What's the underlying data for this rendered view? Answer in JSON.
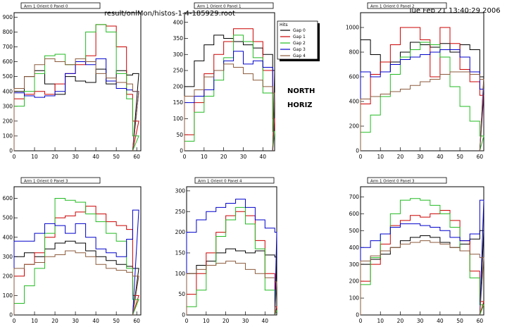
{
  "header": {
    "filename": "result/onlMon/histos-1-4-185929.root",
    "datetime": "Tue Feb 21 13:40:29 2006"
  },
  "legend": {
    "title": "Hits",
    "entries": [
      "Gap 0",
      "Gap 1",
      "Gap 2",
      "Gap 3",
      "Gap 4"
    ]
  },
  "annotations": [
    "NORTH",
    "HORIZ"
  ],
  "colors": {
    "Gap 0": "#000000",
    "Gap 1": "#cc0000",
    "Gap 2": "#22bb22",
    "Gap 3": "#0000cc",
    "Gap 4": "#8b5a3c"
  },
  "chart_data": [
    {
      "type": "line",
      "title": "Arm 1 Orient 0 Panel 0",
      "x_ticks": [
        0,
        10,
        20,
        30,
        40,
        50,
        60
      ],
      "y_ticks": [
        0,
        100,
        200,
        300,
        400,
        500,
        600,
        700,
        800,
        900
      ],
      "xlim": [
        0,
        62
      ],
      "ylim": [
        0,
        930
      ],
      "series": [
        {
          "name": "Gap 0",
          "x": [
            0,
            5,
            10,
            15,
            20,
            25,
            30,
            35,
            40,
            45,
            50,
            55,
            58
          ],
          "y": [
            400,
            500,
            540,
            450,
            380,
            500,
            470,
            460,
            550,
            450,
            540,
            510,
            520
          ]
        },
        {
          "name": "Gap 1",
          "x": [
            0,
            5,
            10,
            15,
            20,
            25,
            30,
            35,
            40,
            45,
            50,
            55,
            58
          ],
          "y": [
            350,
            380,
            400,
            380,
            450,
            520,
            580,
            640,
            850,
            840,
            700,
            380,
            200
          ]
        },
        {
          "name": "Gap 2",
          "x": [
            0,
            5,
            10,
            15,
            20,
            25,
            30,
            35,
            40,
            45,
            50,
            55,
            58
          ],
          "y": [
            300,
            400,
            520,
            640,
            650,
            580,
            600,
            800,
            850,
            800,
            520,
            350,
            100
          ]
        },
        {
          "name": "Gap 3",
          "x": [
            0,
            5,
            10,
            15,
            20,
            25,
            30,
            35,
            40,
            45,
            50,
            55,
            58
          ],
          "y": [
            390,
            370,
            360,
            370,
            400,
            520,
            600,
            580,
            620,
            470,
            420,
            410,
            400
          ]
        },
        {
          "name": "Gap 4",
          "x": [
            0,
            5,
            10,
            15,
            20,
            25,
            30,
            35,
            40,
            45,
            50,
            55,
            58
          ],
          "y": [
            420,
            500,
            580,
            620,
            600,
            580,
            620,
            600,
            520,
            490,
            460,
            450,
            400
          ]
        }
      ]
    },
    {
      "type": "line",
      "title": "Arm 1 Orient 0 Panel 1",
      "x_ticks": [
        0,
        10,
        20,
        30,
        40
      ],
      "y_ticks": [
        0,
        50,
        100,
        150,
        200,
        250,
        300,
        350,
        400
      ],
      "xlim": [
        0,
        46
      ],
      "ylim": [
        0,
        430
      ],
      "series": [
        {
          "name": "Gap 0",
          "x": [
            0,
            5,
            10,
            15,
            20,
            25,
            30,
            35,
            40,
            45
          ],
          "y": [
            200,
            280,
            330,
            360,
            350,
            340,
            330,
            320,
            300,
            250
          ]
        },
        {
          "name": "Gap 1",
          "x": [
            0,
            5,
            10,
            15,
            20,
            25,
            30,
            35,
            40,
            45
          ],
          "y": [
            50,
            150,
            240,
            300,
            340,
            380,
            380,
            340,
            250,
            100
          ]
        },
        {
          "name": "Gap 2",
          "x": [
            0,
            5,
            10,
            15,
            20,
            25,
            30,
            35,
            40,
            45
          ],
          "y": [
            30,
            120,
            170,
            220,
            290,
            360,
            340,
            290,
            180,
            60
          ]
        },
        {
          "name": "Gap 3",
          "x": [
            0,
            5,
            10,
            15,
            20,
            25,
            30,
            35,
            40,
            45
          ],
          "y": [
            150,
            170,
            190,
            250,
            280,
            310,
            270,
            280,
            260,
            180
          ]
        },
        {
          "name": "Gap 4",
          "x": [
            0,
            5,
            10,
            15,
            20,
            25,
            30,
            35,
            40,
            45
          ],
          "y": [
            170,
            190,
            230,
            250,
            270,
            260,
            240,
            220,
            200,
            180
          ]
        }
      ]
    },
    {
      "type": "line",
      "title": "Arm 1 Orient 0 Panel 2",
      "x_ticks": [
        0,
        10,
        20,
        30,
        40,
        50,
        60
      ],
      "y_ticks": [
        0,
        200,
        400,
        600,
        800,
        1000
      ],
      "xlim": [
        0,
        62
      ],
      "ylim": [
        0,
        1120
      ],
      "series": [
        {
          "name": "Gap 0",
          "x": [
            0,
            5,
            10,
            15,
            20,
            25,
            30,
            35,
            40,
            45,
            50,
            55,
            60
          ],
          "y": [
            900,
            780,
            640,
            720,
            800,
            880,
            860,
            840,
            870,
            800,
            860,
            820,
            600
          ]
        },
        {
          "name": "Gap 1",
          "x": [
            0,
            5,
            10,
            15,
            20,
            25,
            30,
            35,
            40,
            45,
            50,
            55,
            60
          ],
          "y": [
            380,
            620,
            720,
            860,
            1000,
            1000,
            900,
            600,
            1000,
            870,
            660,
            560,
            450
          ]
        },
        {
          "name": "Gap 2",
          "x": [
            0,
            5,
            10,
            15,
            20,
            25,
            30,
            35,
            40,
            45,
            50,
            55,
            60
          ],
          "y": [
            150,
            290,
            440,
            620,
            760,
            820,
            880,
            860,
            760,
            520,
            360,
            240,
            120
          ]
        },
        {
          "name": "Gap 3",
          "x": [
            0,
            5,
            10,
            15,
            20,
            25,
            30,
            35,
            40,
            45,
            50,
            55,
            60
          ],
          "y": [
            640,
            600,
            640,
            700,
            740,
            760,
            780,
            800,
            820,
            820,
            760,
            640,
            500
          ]
        },
        {
          "name": "Gap 4",
          "x": [
            0,
            5,
            10,
            15,
            20,
            25,
            30,
            35,
            40,
            45,
            50,
            55,
            60
          ],
          "y": [
            420,
            440,
            460,
            480,
            500,
            530,
            560,
            580,
            620,
            640,
            640,
            620,
            580
          ]
        }
      ]
    },
    {
      "type": "line",
      "title": "Arm 1 Orient 0 Panel 3",
      "x_ticks": [
        0,
        10,
        20,
        30,
        40,
        50,
        60
      ],
      "y_ticks": [
        0,
        100,
        200,
        300,
        400,
        500,
        600
      ],
      "xlim": [
        0,
        62
      ],
      "ylim": [
        0,
        660
      ],
      "series": [
        {
          "name": "Gap 0",
          "x": [
            0,
            5,
            10,
            15,
            20,
            25,
            30,
            35,
            40,
            45,
            50,
            55,
            58
          ],
          "y": [
            300,
            320,
            300,
            340,
            370,
            380,
            370,
            330,
            300,
            280,
            260,
            250,
            240
          ]
        },
        {
          "name": "Gap 1",
          "x": [
            0,
            5,
            10,
            15,
            20,
            25,
            30,
            35,
            40,
            45,
            50,
            55,
            58
          ],
          "y": [
            200,
            260,
            320,
            400,
            500,
            510,
            530,
            560,
            520,
            480,
            460,
            440,
            100
          ]
        },
        {
          "name": "Gap 2",
          "x": [
            0,
            5,
            10,
            15,
            20,
            25,
            30,
            35,
            40,
            45,
            50,
            55,
            58
          ],
          "y": [
            60,
            150,
            240,
            420,
            600,
            590,
            580,
            520,
            480,
            420,
            380,
            240,
            80
          ]
        },
        {
          "name": "Gap 3",
          "x": [
            0,
            5,
            10,
            15,
            20,
            25,
            30,
            35,
            40,
            45,
            50,
            55,
            58
          ],
          "y": [
            380,
            380,
            420,
            470,
            460,
            420,
            470,
            400,
            340,
            320,
            300,
            390,
            540
          ]
        },
        {
          "name": "Gap 4",
          "x": [
            0,
            5,
            10,
            15,
            20,
            25,
            30,
            35,
            40,
            45,
            50,
            55,
            58
          ],
          "y": [
            240,
            260,
            270,
            300,
            310,
            330,
            320,
            300,
            260,
            240,
            230,
            220,
            200
          ]
        }
      ]
    },
    {
      "type": "line",
      "title": "Arm 1 Orient 0 Panel 4",
      "x_ticks": [
        0,
        10,
        20,
        30,
        40
      ],
      "y_ticks": [
        0,
        50,
        100,
        150,
        200,
        250,
        300
      ],
      "xlim": [
        0,
        46
      ],
      "ylim": [
        0,
        310
      ],
      "series": [
        {
          "name": "Gap 0",
          "x": [
            0,
            5,
            10,
            15,
            20,
            25,
            30,
            35,
            40,
            45
          ],
          "y": [
            100,
            120,
            130,
            150,
            160,
            155,
            150,
            155,
            145,
            140
          ]
        },
        {
          "name": "Gap 1",
          "x": [
            0,
            5,
            10,
            15,
            20,
            25,
            30,
            35,
            40,
            45
          ],
          "y": [
            50,
            100,
            150,
            200,
            240,
            250,
            240,
            180,
            100,
            20
          ]
        },
        {
          "name": "Gap 2",
          "x": [
            0,
            5,
            10,
            15,
            20,
            25,
            30,
            35,
            40,
            45
          ],
          "y": [
            20,
            60,
            120,
            190,
            230,
            260,
            220,
            160,
            60,
            10
          ]
        },
        {
          "name": "Gap 3",
          "x": [
            0,
            5,
            10,
            15,
            20,
            25,
            30,
            35,
            40,
            45
          ],
          "y": [
            200,
            230,
            250,
            260,
            270,
            280,
            260,
            230,
            210,
            200
          ]
        },
        {
          "name": "Gap 4",
          "x": [
            0,
            5,
            10,
            15,
            20,
            25,
            30,
            35,
            40,
            45
          ],
          "y": [
            100,
            110,
            120,
            125,
            130,
            125,
            110,
            100,
            90,
            80
          ]
        }
      ]
    },
    {
      "type": "line",
      "title": "Arm 1 Orient 0 Panel 3",
      "x_ticks": [
        0,
        10,
        20,
        30,
        40,
        50,
        60
      ],
      "y_ticks": [
        0,
        100,
        200,
        300,
        400,
        500,
        600,
        700
      ],
      "xlim": [
        0,
        62
      ],
      "ylim": [
        0,
        760
      ],
      "series": [
        {
          "name": "Gap 0",
          "x": [
            0,
            5,
            10,
            15,
            20,
            25,
            30,
            35,
            40,
            45,
            50,
            55,
            60
          ],
          "y": [
            300,
            330,
            360,
            400,
            440,
            460,
            470,
            460,
            430,
            400,
            420,
            450,
            500
          ]
        },
        {
          "name": "Gap 1",
          "x": [
            0,
            5,
            10,
            15,
            20,
            25,
            30,
            35,
            40,
            45,
            50,
            55,
            60
          ],
          "y": [
            200,
            300,
            420,
            530,
            560,
            590,
            580,
            600,
            620,
            560,
            440,
            260,
            80
          ]
        },
        {
          "name": "Gap 2",
          "x": [
            0,
            5,
            10,
            15,
            20,
            25,
            30,
            35,
            40,
            45,
            50,
            55,
            60
          ],
          "y": [
            180,
            340,
            480,
            600,
            680,
            690,
            680,
            650,
            600,
            520,
            380,
            220,
            60
          ]
        },
        {
          "name": "Gap 3",
          "x": [
            0,
            5,
            10,
            15,
            20,
            25,
            30,
            35,
            40,
            45,
            50,
            55,
            60
          ],
          "y": [
            400,
            440,
            480,
            520,
            540,
            540,
            530,
            520,
            500,
            460,
            440,
            480,
            680
          ]
        },
        {
          "name": "Gap 4",
          "x": [
            0,
            5,
            10,
            15,
            20,
            25,
            30,
            35,
            40,
            45,
            50,
            55,
            60
          ],
          "y": [
            320,
            350,
            380,
            400,
            420,
            430,
            440,
            430,
            420,
            400,
            380,
            360,
            340
          ]
        }
      ]
    }
  ]
}
